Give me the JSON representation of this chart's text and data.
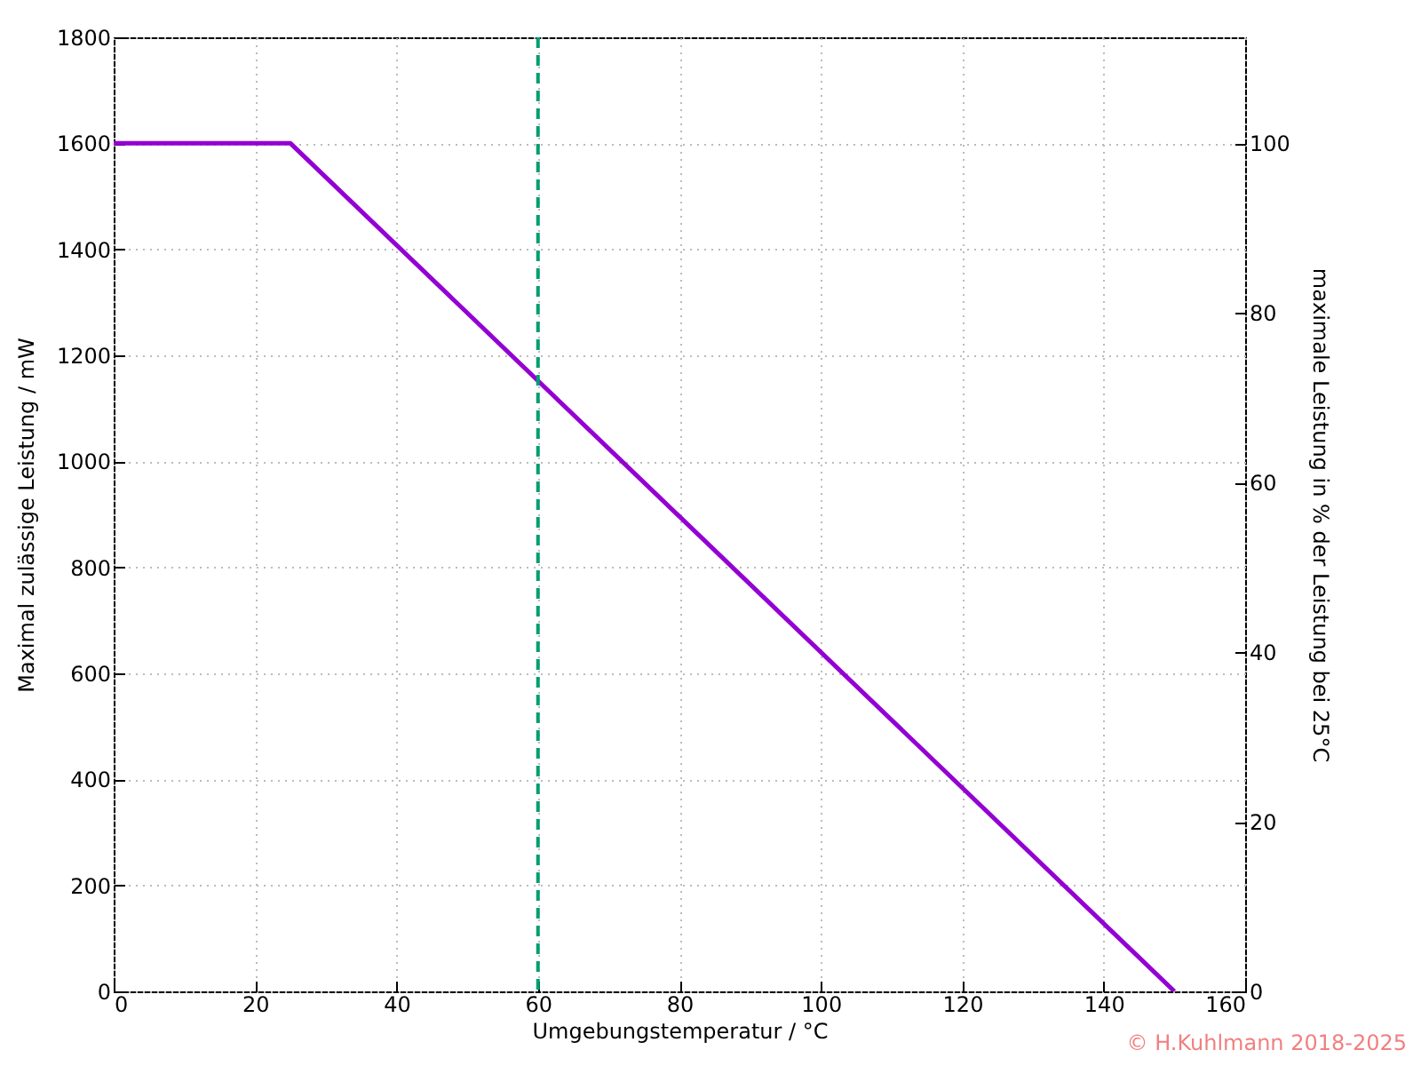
{
  "chart_data": {
    "type": "line",
    "x": [
      0,
      25,
      150
    ],
    "series": [
      {
        "color": "#9400d3",
        "values": [
          1600,
          1600,
          0
        ]
      }
    ],
    "xlabel": "Umgebungstemperatur / °C",
    "ylabel": "Maximal zulässige Leistung / mW",
    "y2label": "maximale Leistung in % der Leistung bei 25°C",
    "xlim": [
      0,
      160
    ],
    "xticks": [
      0,
      20,
      40,
      60,
      80,
      100,
      120,
      140,
      160
    ],
    "ylim": [
      0,
      1800
    ],
    "yticks": [
      0,
      200,
      400,
      600,
      800,
      1000,
      1200,
      1400,
      1600,
      1800
    ],
    "y2lim": [
      0,
      112.5
    ],
    "y2ticks": [
      0,
      20,
      40,
      60,
      80,
      100
    ],
    "ref_lines": [
      {
        "axis": "x",
        "value": 60,
        "color": "#009e73",
        "line_style": "dashed"
      }
    ],
    "grid": true,
    "marker": "none",
    "line_style": "solid",
    "annotations": [
      "© H.Kuhlmann 2018-2025"
    ]
  }
}
